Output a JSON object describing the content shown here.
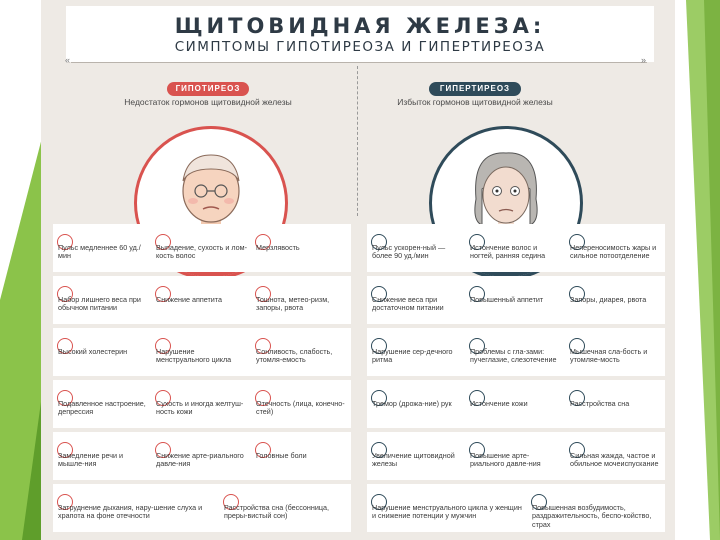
{
  "title": "ЩИТОВИДНАЯ ЖЕЛЕЗА:",
  "subtitle": "СИМПТОМЫ ГИПОТИРЕОЗА И ГИПЕРТИРЕОЗА",
  "colors": {
    "hypo": "#d9534f",
    "hyper": "#2f4b5a",
    "slide_green": "#8bc34a"
  },
  "hypo": {
    "label": "ГИПОТИРЕОЗ",
    "description": "Недостаток гормонов щитовидной железы",
    "rows": [
      [
        "Пульс медленнее 60 уд./мин",
        "Выпадение, сухость и лом-кость волос",
        "Мерзлявость"
      ],
      [
        "Набор лишнего веса при обычном питании",
        "Снижение аппетита",
        "Тошнота, метео-ризм, запоры, рвота"
      ],
      [
        "Высокий холестерин",
        "Нарушение менструального цикла",
        "Сонливость, слабость, утомля-емость"
      ],
      [
        "Подавленное настроение, депрессия",
        "Сухость и иногда желтуш-ность кожи",
        "Отечность (лица, конечно-стей)"
      ],
      [
        "Замедление речи и мышле-ния",
        "Снижение арте-риального давле-ния",
        "Головные боли"
      ],
      [
        "Затруднение дыхания, нару-шение слуха и храпота на фоне отечности",
        "Расстройства сна (бессонница, преры-вистый сон)"
      ]
    ]
  },
  "hyper": {
    "label": "ГИПЕРТИРЕОЗ",
    "description": "Избыток гормонов щитовидной железы",
    "rows": [
      [
        "Пульс ускорен-ный — более 90 уд./мин",
        "Истончение волос и ногтей, ранняя седина",
        "Непереносимость жары и сильное потоотделение"
      ],
      [
        "Снижение веса при достаточном питании",
        "Повышенный аппетит",
        "Запоры, диарея, рвота"
      ],
      [
        "Нарушение сер-дечного ритма",
        "Проблемы с гла-зами: пучеглазие, слезотечение",
        "Мышечная сла-бость и утомляе-мость"
      ],
      [
        "Тремор (дрожа-ние) рук",
        "Истончение кожи",
        "Расстройства сна"
      ],
      [
        "Увеличение щитовидной железы",
        "Повышение арте-риального давле-ния",
        "Сильная жажда, частое и обильное мочеиспускание"
      ],
      [
        "Нарушение менструального цикла у женщин и снижение потенции у мужчин",
        "Повышенная возбудимость, раздражительность, беспо-койство, страх"
      ]
    ]
  }
}
